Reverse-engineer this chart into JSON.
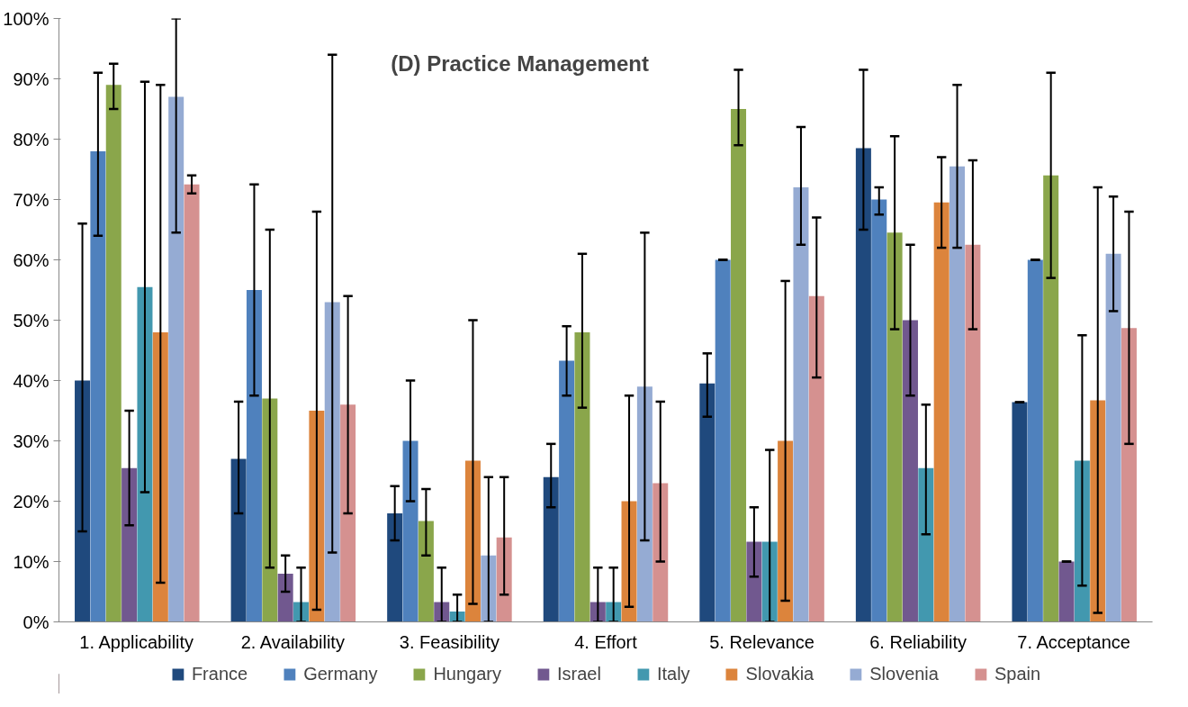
{
  "chart_data": {
    "type": "bar",
    "title": "(D) Practice Management",
    "categories": [
      "1. Applicability",
      "2. Availability",
      "3. Feasibility",
      "4. Effort",
      "5. Relevance",
      "6. Reliability",
      "7. Acceptance"
    ],
    "ylim": [
      0,
      100
    ],
    "yticks": [
      {
        "value": 0,
        "label": "0%"
      },
      {
        "value": 10,
        "label": "10%"
      },
      {
        "value": 20,
        "label": "20%"
      },
      {
        "value": 30,
        "label": "30%"
      },
      {
        "value": 40,
        "label": "40%"
      },
      {
        "value": 50,
        "label": "50%"
      },
      {
        "value": 60,
        "label": "60%"
      },
      {
        "value": 70,
        "label": "70%"
      },
      {
        "value": 80,
        "label": "80%"
      },
      {
        "value": 90,
        "label": "90%"
      },
      {
        "value": 100,
        "label": "100%"
      }
    ],
    "grid": false,
    "legend": "bottom",
    "series": [
      {
        "name": "France",
        "color": "#1f497d",
        "values": [
          40,
          27,
          18,
          24,
          39.5,
          78.5,
          36.4
        ],
        "errors": [
          [
            15,
            66
          ],
          [
            18,
            36.5
          ],
          [
            13.5,
            22.5
          ],
          [
            19,
            29.5
          ],
          [
            34,
            44.5
          ],
          [
            65,
            91.5
          ],
          [
            36.4,
            36.4
          ]
        ]
      },
      {
        "name": "Germany",
        "color": "#4f81bd",
        "values": [
          78,
          55,
          30,
          43.3,
          60,
          70,
          60
        ],
        "errors": [
          [
            64,
            91
          ],
          [
            37.5,
            72.5
          ],
          [
            20,
            40
          ],
          [
            37.5,
            49
          ],
          [
            60,
            60
          ],
          [
            67.5,
            72
          ],
          [
            60,
            60
          ]
        ]
      },
      {
        "name": "Hungary",
        "color": "#8aa64b",
        "values": [
          89,
          37,
          16.7,
          48,
          85,
          64.5,
          74
        ],
        "errors": [
          [
            85,
            92.5
          ],
          [
            9,
            65
          ],
          [
            11,
            22
          ],
          [
            35.5,
            61
          ],
          [
            79,
            91.5
          ],
          [
            48.5,
            80.5
          ],
          [
            57,
            91
          ]
        ]
      },
      {
        "name": "Israel",
        "color": "#71588f",
        "values": [
          25.5,
          8,
          3.3,
          3.3,
          13.3,
          50,
          10
        ],
        "errors": [
          [
            16,
            35
          ],
          [
            5,
            11
          ],
          [
            0,
            9
          ],
          [
            0,
            9
          ],
          [
            7.5,
            19
          ],
          [
            37.5,
            62.5
          ],
          [
            10,
            10
          ]
        ]
      },
      {
        "name": "Italy",
        "color": "#4298af",
        "values": [
          55.5,
          3.3,
          1.7,
          3.3,
          13.3,
          25.5,
          26.7
        ],
        "errors": [
          [
            21.5,
            89.5
          ],
          [
            0,
            9
          ],
          [
            0,
            4.5
          ],
          [
            0,
            9
          ],
          [
            0,
            28.5
          ],
          [
            14.5,
            36
          ],
          [
            6,
            47.5
          ]
        ]
      },
      {
        "name": "Slovakia",
        "color": "#dc843c",
        "values": [
          48,
          35,
          26.7,
          20,
          30,
          69.5,
          36.7
        ],
        "errors": [
          [
            6.5,
            89
          ],
          [
            2,
            68
          ],
          [
            3,
            50
          ],
          [
            2.5,
            37.5
          ],
          [
            3.5,
            56.5
          ],
          [
            62,
            77
          ],
          [
            1.5,
            72
          ]
        ]
      },
      {
        "name": "Slovenia",
        "color": "#95abd3",
        "values": [
          87,
          53,
          11,
          39,
          72,
          75.5,
          61
        ],
        "errors": [
          [
            64.5,
            100
          ],
          [
            11.5,
            94
          ],
          [
            0,
            24
          ],
          [
            13.5,
            64.5
          ],
          [
            62.5,
            82
          ],
          [
            62,
            89
          ],
          [
            51.5,
            70.5
          ]
        ]
      },
      {
        "name": "Spain",
        "color": "#d59190",
        "values": [
          72.5,
          36,
          14,
          23,
          54,
          62.5,
          48.7
        ],
        "errors": [
          [
            71,
            74
          ],
          [
            18,
            54
          ],
          [
            4.5,
            24
          ],
          [
            10,
            36.5
          ],
          [
            40.5,
            67
          ],
          [
            48.5,
            76.5
          ],
          [
            29.5,
            68
          ]
        ]
      }
    ]
  }
}
